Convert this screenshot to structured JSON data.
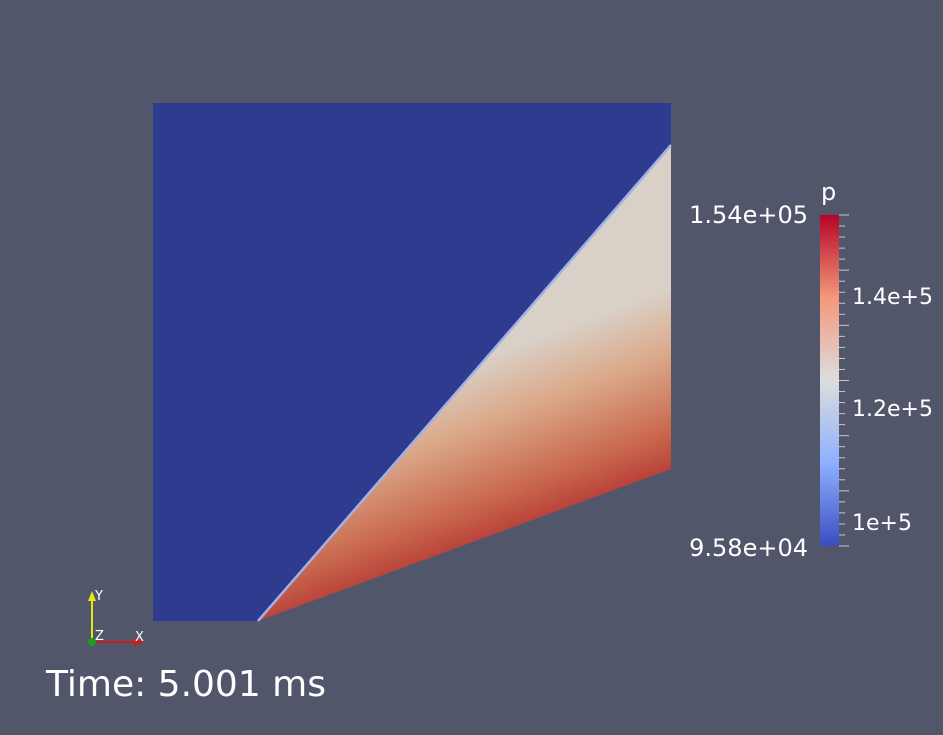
{
  "colorbar": {
    "title": "p",
    "max_label": "1.54e+05",
    "min_label": "9.58e+04",
    "range": [
      95800,
      154000
    ],
    "ticks": [
      {
        "value": 140000,
        "label": "1.4e+5"
      },
      {
        "value": 120000,
        "label": "1.2e+5"
      },
      {
        "value": 100000,
        "label": "1e+5"
      }
    ],
    "colormap": [
      "#3b4cc0",
      "#8db0fe",
      "#dddddd",
      "#f4987a",
      "#b40426"
    ]
  },
  "orientation_axes": {
    "x_label": "X",
    "y_label": "Y",
    "z_label": "Z",
    "x_color": "#d21919",
    "y_color": "#e6e619",
    "z_color": "#19a019"
  },
  "time_annotation": "Time: 5.001 ms",
  "colors": {
    "background": "#52566b",
    "freestream_region": "#2f3b8f",
    "shock_line": "#9fb2e6",
    "wall_region": "#9c0018"
  }
}
